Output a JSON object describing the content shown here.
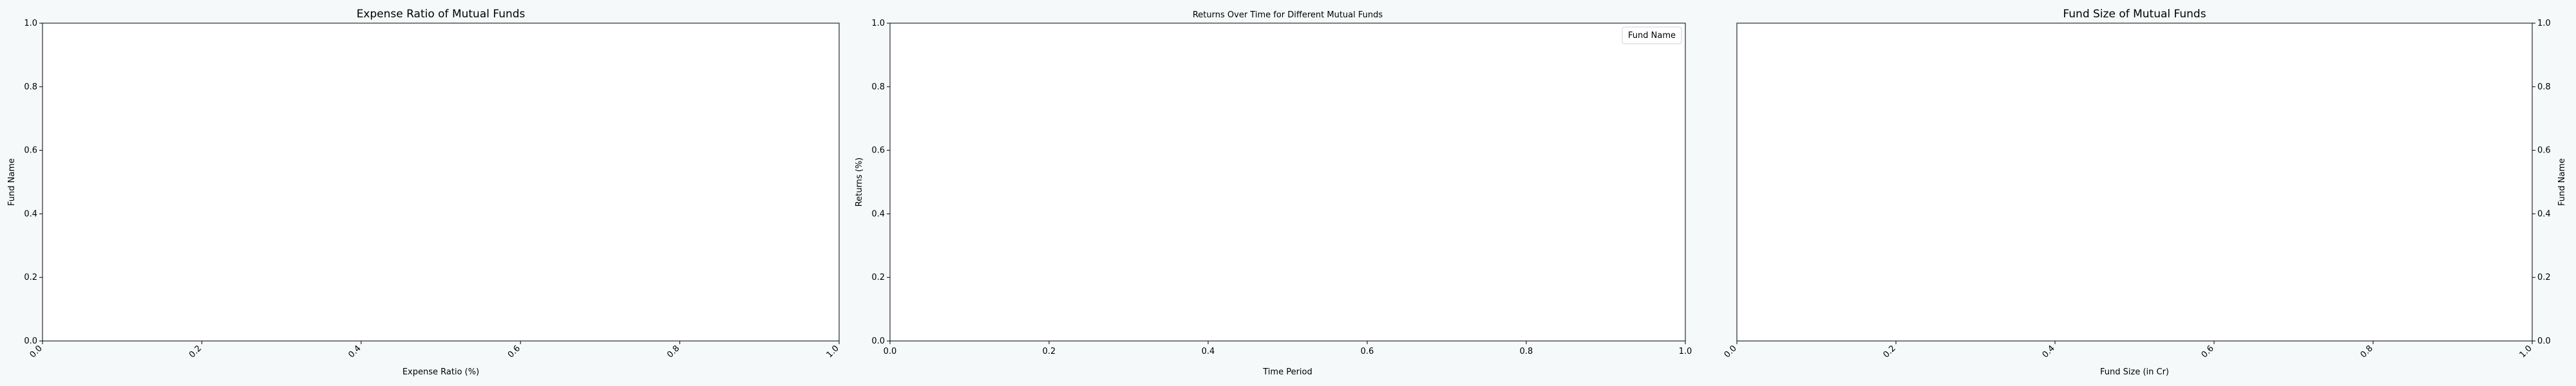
{
  "chart_data": [
    {
      "type": "bar",
      "orientation": "horizontal",
      "title": "Expense Ratio of Mutual Funds",
      "xlabel": "Expense Ratio (%)",
      "ylabel": "Fund Name",
      "xlim": [
        0,
        1
      ],
      "ylim": [
        0,
        1
      ],
      "xticks": [
        "0.0",
        "0.2",
        "0.4",
        "0.6",
        "0.8",
        "1.0"
      ],
      "yticks": [
        "0.0",
        "0.2",
        "0.4",
        "0.6",
        "0.8",
        "1.0"
      ],
      "ylabel_side": "left",
      "xtick_rotation": 45,
      "series": [],
      "grid": false
    },
    {
      "type": "line",
      "title": "Returns Over Time for Different Mutual Funds",
      "xlabel": "Time Period",
      "ylabel": "Returns (%)",
      "xlim": [
        0,
        1
      ],
      "ylim": [
        0,
        1
      ],
      "xticks": [
        "0.0",
        "0.2",
        "0.4",
        "0.6",
        "0.8",
        "1.0"
      ],
      "yticks": [
        "0.0",
        "0.2",
        "0.4",
        "0.6",
        "0.8",
        "1.0"
      ],
      "ylabel_side": "left",
      "xtick_rotation": 0,
      "legend": {
        "title": "Fund Name",
        "placement": "top-right"
      },
      "series": [],
      "grid": false
    },
    {
      "type": "bar",
      "orientation": "horizontal",
      "title": "Fund Size of Mutual Funds",
      "xlabel": "Fund Size (in Cr)",
      "ylabel": "Fund Name",
      "xlim": [
        0,
        1
      ],
      "ylim": [
        0,
        1
      ],
      "xticks": [
        "0.0",
        "0.2",
        "0.4",
        "0.6",
        "0.8",
        "1.0"
      ],
      "yticks": [
        "0.0",
        "0.2",
        "0.4",
        "0.6",
        "0.8",
        "1.0"
      ],
      "ylabel_side": "right",
      "xtick_rotation": 45,
      "series": [],
      "grid": false
    }
  ]
}
